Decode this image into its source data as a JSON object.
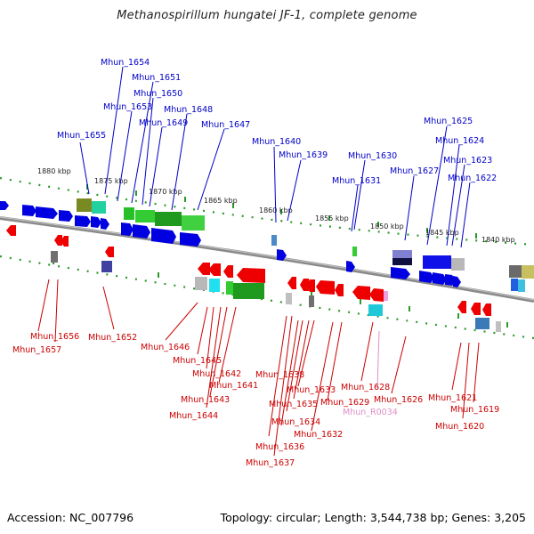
{
  "title": "Methanospirillum hungatei JF-1, complete genome",
  "footer": {
    "accession": "Accession: NC_007796",
    "summary": "Topology: circular; Length: 3,544,738 bp; Genes: 3,205"
  },
  "scale_labels": [
    "1880 kbp",
    "1875 kbp",
    "1870 kbp",
    "1865 kbp",
    "1860 kbp",
    "1855 kbp",
    "1850 kbp",
    "1845 kbp",
    "1840 kbp"
  ],
  "top_genes": [
    "Mhun_1654",
    "Mhun_1651",
    "Mhun_1650",
    "Mhun_1653",
    "Mhun_1648",
    "Mhun_1649",
    "Mhun_1647",
    "Mhun_1655",
    "Mhun_1640",
    "Mhun_1639",
    "Mhun_1630",
    "Mhun_1631",
    "Mhun_1627",
    "Mhun_1625",
    "Mhun_1624",
    "Mhun_1623",
    "Mhun_1622"
  ],
  "bottom_genes": [
    "Mhun_1656",
    "Mhun_1657",
    "Mhun_1652",
    "Mhun_1646",
    "Mhun_1645",
    "Mhun_1642",
    "Mhun_1641",
    "Mhun_1643",
    "Mhun_1644",
    "Mhun_1638",
    "Mhun_1633",
    "Mhun_1635",
    "Mhun_1634",
    "Mhun_1636",
    "Mhun_1637",
    "Mhun_1632",
    "Mhun_1629",
    "Mhun_1628",
    "Mhun_R0034",
    "Mhun_1626",
    "Mhun_1621",
    "Mhun_1619",
    "Mhun_1620"
  ],
  "colors": {
    "forward_label": "#0000c8",
    "reverse_label": "#cc0000",
    "rna_label": "#e090c8",
    "backbone": "#888888",
    "dots": "#2a9a2a"
  }
}
